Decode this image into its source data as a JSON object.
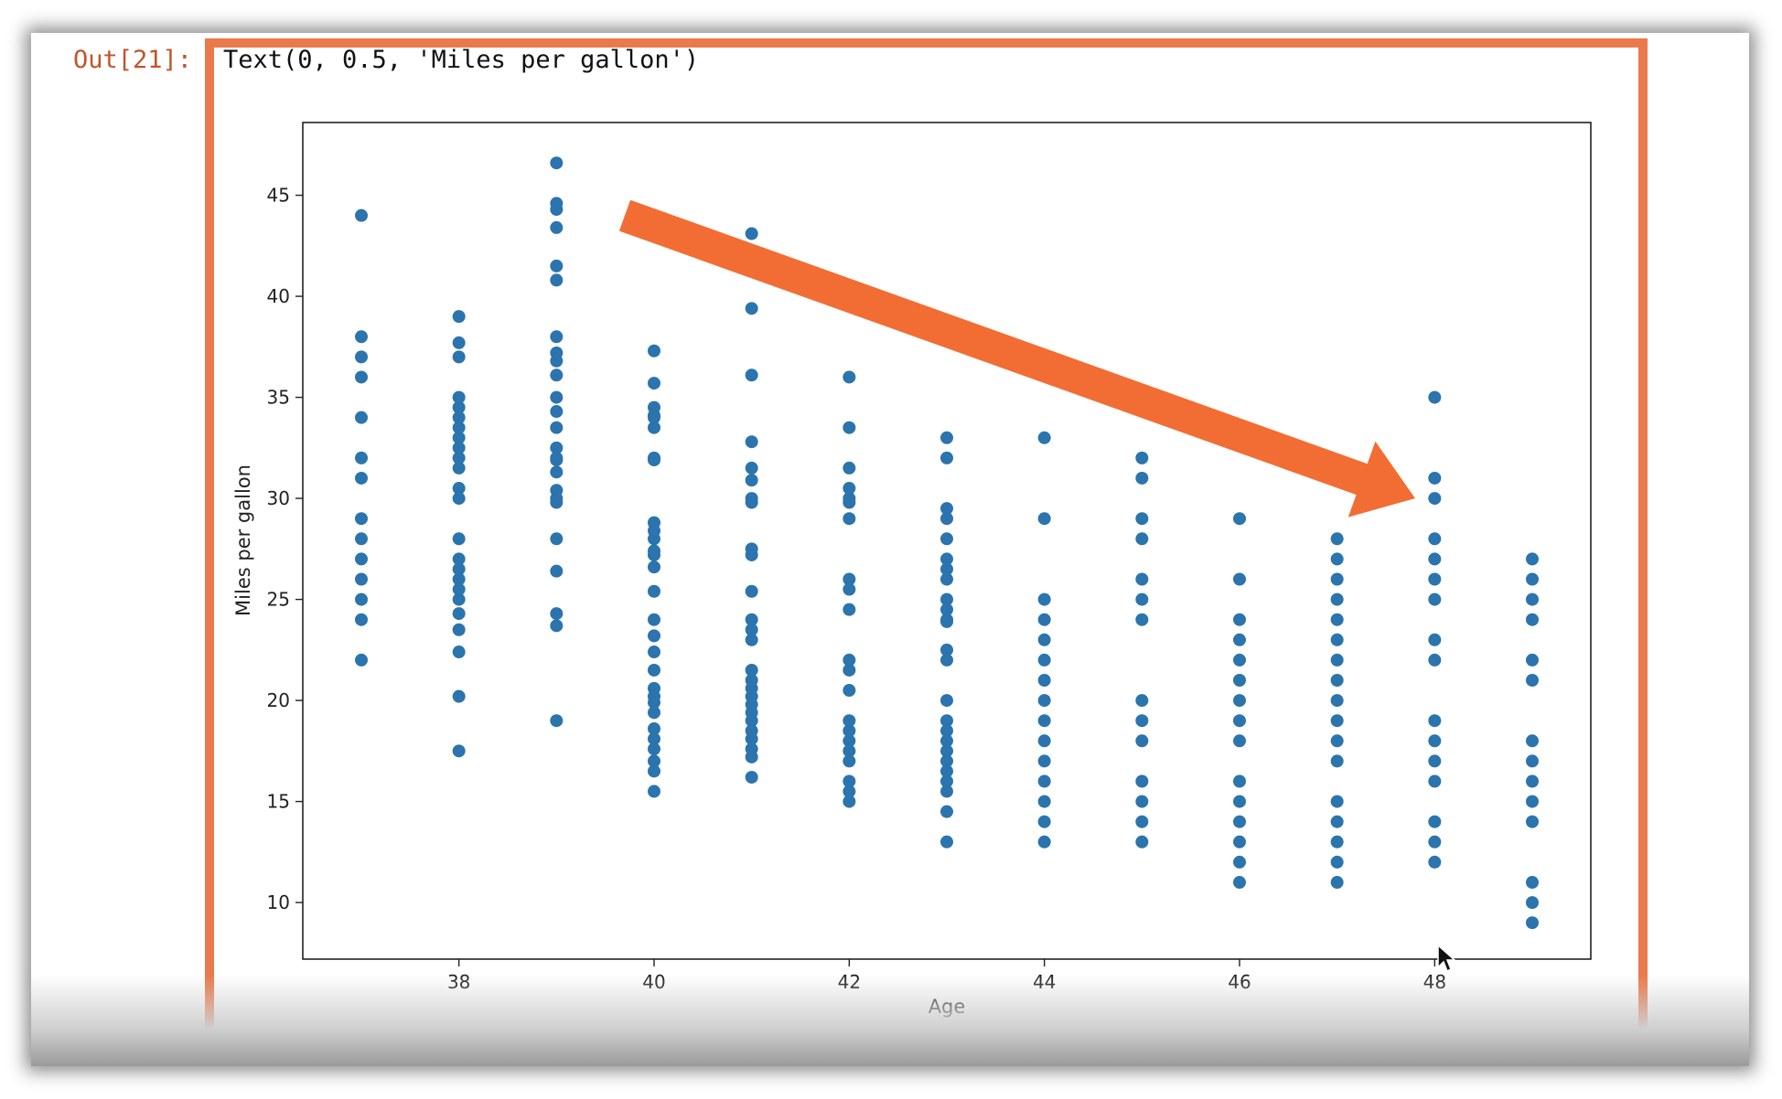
{
  "cell": {
    "prompt": "Out[21]:",
    "output_text": "Text(0, 0.5, 'Miles per gallon')"
  },
  "colors": {
    "point": "#2b74ad",
    "arrow": "#f26d33",
    "highlight": "#ea7a4b",
    "prompt": "#c0552b"
  },
  "annotation": {
    "shape": "arrow",
    "from": [
      39.7,
      44
    ],
    "to": [
      47.8,
      30
    ]
  },
  "chart_data": {
    "type": "scatter",
    "xlabel": "Age",
    "ylabel": "Miles per gallon",
    "xlim": [
      36.4,
      49.6
    ],
    "ylim": [
      7.2,
      48.6
    ],
    "xticks": [
      38,
      40,
      42,
      44,
      46,
      48
    ],
    "yticks": [
      10,
      15,
      20,
      25,
      30,
      35,
      40,
      45
    ],
    "grid": false,
    "points": [
      [
        37,
        44
      ],
      [
        37,
        38
      ],
      [
        37,
        37
      ],
      [
        37,
        36
      ],
      [
        37,
        34
      ],
      [
        37,
        32
      ],
      [
        37,
        31
      ],
      [
        37,
        29
      ],
      [
        37,
        28
      ],
      [
        37,
        27
      ],
      [
        37,
        26
      ],
      [
        37,
        25
      ],
      [
        37,
        24
      ],
      [
        37,
        22
      ],
      [
        38,
        39
      ],
      [
        38,
        37.7
      ],
      [
        38,
        37
      ],
      [
        38,
        35
      ],
      [
        38,
        34.5
      ],
      [
        38,
        34
      ],
      [
        38,
        33.5
      ],
      [
        38,
        33
      ],
      [
        38,
        32.5
      ],
      [
        38,
        32
      ],
      [
        38,
        31.5
      ],
      [
        38,
        30.5
      ],
      [
        38,
        30
      ],
      [
        38,
        28
      ],
      [
        38,
        27
      ],
      [
        38,
        26.5
      ],
      [
        38,
        26
      ],
      [
        38,
        25.5
      ],
      [
        38,
        25
      ],
      [
        38,
        24.3
      ],
      [
        38,
        23.5
      ],
      [
        38,
        22.4
      ],
      [
        38,
        20.2
      ],
      [
        38,
        17.5
      ],
      [
        39,
        46.6
      ],
      [
        39,
        44.6
      ],
      [
        39,
        44.3
      ],
      [
        39,
        43.4
      ],
      [
        39,
        41.5
      ],
      [
        39,
        40.8
      ],
      [
        39,
        38
      ],
      [
        39,
        37.2
      ],
      [
        39,
        36.8
      ],
      [
        39,
        36.1
      ],
      [
        39,
        35
      ],
      [
        39,
        34.3
      ],
      [
        39,
        33.5
      ],
      [
        39,
        32.5
      ],
      [
        39,
        32
      ],
      [
        39,
        31.9
      ],
      [
        39,
        31.3
      ],
      [
        39,
        30.4
      ],
      [
        39,
        30
      ],
      [
        39,
        29.8
      ],
      [
        39,
        28
      ],
      [
        39,
        26.4
      ],
      [
        39,
        24.3
      ],
      [
        39,
        23.7
      ],
      [
        39,
        19
      ],
      [
        40,
        37.3
      ],
      [
        40,
        35.7
      ],
      [
        40,
        34.5
      ],
      [
        40,
        34.1
      ],
      [
        40,
        34
      ],
      [
        40,
        33.5
      ],
      [
        40,
        32
      ],
      [
        40,
        31.9
      ],
      [
        40,
        28.8
      ],
      [
        40,
        28.4
      ],
      [
        40,
        28
      ],
      [
        40,
        27.4
      ],
      [
        40,
        27.2
      ],
      [
        40,
        26.6
      ],
      [
        40,
        25.4
      ],
      [
        40,
        24
      ],
      [
        40,
        23.2
      ],
      [
        40,
        22.4
      ],
      [
        40,
        21.5
      ],
      [
        40,
        20.6
      ],
      [
        40,
        20.2
      ],
      [
        40,
        19.9
      ],
      [
        40,
        19.4
      ],
      [
        40,
        18.6
      ],
      [
        40,
        18.1
      ],
      [
        40,
        17.6
      ],
      [
        40,
        17
      ],
      [
        40,
        16.5
      ],
      [
        40,
        15.5
      ],
      [
        41,
        43.1
      ],
      [
        41,
        39.4
      ],
      [
        41,
        36.1
      ],
      [
        41,
        32.8
      ],
      [
        41,
        31.5
      ],
      [
        41,
        30.9
      ],
      [
        41,
        30
      ],
      [
        41,
        29.8
      ],
      [
        41,
        27.5
      ],
      [
        41,
        27.2
      ],
      [
        41,
        25.4
      ],
      [
        41,
        24
      ],
      [
        41,
        23.5
      ],
      [
        41,
        23
      ],
      [
        41,
        21.5
      ],
      [
        41,
        21
      ],
      [
        41,
        20.6
      ],
      [
        41,
        20.2
      ],
      [
        41,
        19.8
      ],
      [
        41,
        19.4
      ],
      [
        41,
        19
      ],
      [
        41,
        18.5
      ],
      [
        41,
        18.1
      ],
      [
        41,
        17.6
      ],
      [
        41,
        17.2
      ],
      [
        41,
        16.2
      ],
      [
        42,
        36
      ],
      [
        42,
        33.5
      ],
      [
        42,
        31.5
      ],
      [
        42,
        30.5
      ],
      [
        42,
        30
      ],
      [
        42,
        29.8
      ],
      [
        42,
        29
      ],
      [
        42,
        26
      ],
      [
        42,
        25.5
      ],
      [
        42,
        24.5
      ],
      [
        42,
        22
      ],
      [
        42,
        21.5
      ],
      [
        42,
        20.5
      ],
      [
        42,
        19
      ],
      [
        42,
        18.5
      ],
      [
        42,
        18
      ],
      [
        42,
        17.5
      ],
      [
        42,
        17
      ],
      [
        42,
        16
      ],
      [
        42,
        15.5
      ],
      [
        42,
        15
      ],
      [
        43,
        33
      ],
      [
        43,
        32
      ],
      [
        43,
        29.5
      ],
      [
        43,
        29
      ],
      [
        43,
        28
      ],
      [
        43,
        27
      ],
      [
        43,
        26.5
      ],
      [
        43,
        26
      ],
      [
        43,
        25
      ],
      [
        43,
        24.5
      ],
      [
        43,
        24
      ],
      [
        43,
        23.9
      ],
      [
        43,
        22.5
      ],
      [
        43,
        22
      ],
      [
        43,
        20
      ],
      [
        43,
        19
      ],
      [
        43,
        18.5
      ],
      [
        43,
        18
      ],
      [
        43,
        17.5
      ],
      [
        43,
        17
      ],
      [
        43,
        16.5
      ],
      [
        43,
        16
      ],
      [
        43,
        15.5
      ],
      [
        43,
        14.5
      ],
      [
        43,
        13
      ],
      [
        44,
        33
      ],
      [
        44,
        29
      ],
      [
        44,
        25
      ],
      [
        44,
        24
      ],
      [
        44,
        23
      ],
      [
        44,
        22
      ],
      [
        44,
        21
      ],
      [
        44,
        20
      ],
      [
        44,
        19
      ],
      [
        44,
        18
      ],
      [
        44,
        17
      ],
      [
        44,
        16
      ],
      [
        44,
        15
      ],
      [
        44,
        14
      ],
      [
        44,
        13
      ],
      [
        45,
        32
      ],
      [
        45,
        31
      ],
      [
        45,
        29
      ],
      [
        45,
        28
      ],
      [
        45,
        26
      ],
      [
        45,
        25
      ],
      [
        45,
        24
      ],
      [
        45,
        20
      ],
      [
        45,
        19
      ],
      [
        45,
        18
      ],
      [
        45,
        16
      ],
      [
        45,
        15
      ],
      [
        45,
        14
      ],
      [
        45,
        13
      ],
      [
        46,
        29
      ],
      [
        46,
        26
      ],
      [
        46,
        24
      ],
      [
        46,
        23
      ],
      [
        46,
        22
      ],
      [
        46,
        21
      ],
      [
        46,
        20
      ],
      [
        46,
        19
      ],
      [
        46,
        18
      ],
      [
        46,
        16
      ],
      [
        46,
        15
      ],
      [
        46,
        14
      ],
      [
        46,
        13
      ],
      [
        46,
        12
      ],
      [
        46,
        11
      ],
      [
        47,
        28
      ],
      [
        47,
        27
      ],
      [
        47,
        26
      ],
      [
        47,
        25
      ],
      [
        47,
        24
      ],
      [
        47,
        23
      ],
      [
        47,
        22
      ],
      [
        47,
        21
      ],
      [
        47,
        20
      ],
      [
        47,
        19
      ],
      [
        47,
        18
      ],
      [
        47,
        17
      ],
      [
        47,
        15
      ],
      [
        47,
        14
      ],
      [
        47,
        13
      ],
      [
        47,
        12
      ],
      [
        47,
        11
      ],
      [
        48,
        35
      ],
      [
        48,
        31
      ],
      [
        48,
        30
      ],
      [
        48,
        28
      ],
      [
        48,
        27
      ],
      [
        48,
        26
      ],
      [
        48,
        25
      ],
      [
        48,
        23
      ],
      [
        48,
        22
      ],
      [
        48,
        19
      ],
      [
        48,
        18
      ],
      [
        48,
        17
      ],
      [
        48,
        16
      ],
      [
        48,
        14
      ],
      [
        48,
        13
      ],
      [
        48,
        12
      ],
      [
        49,
        27
      ],
      [
        49,
        26
      ],
      [
        49,
        25
      ],
      [
        49,
        24
      ],
      [
        49,
        22
      ],
      [
        49,
        21
      ],
      [
        49,
        18
      ],
      [
        49,
        17
      ],
      [
        49,
        16
      ],
      [
        49,
        15
      ],
      [
        49,
        14
      ],
      [
        49,
        11
      ],
      [
        49,
        10
      ],
      [
        49,
        9
      ]
    ]
  }
}
